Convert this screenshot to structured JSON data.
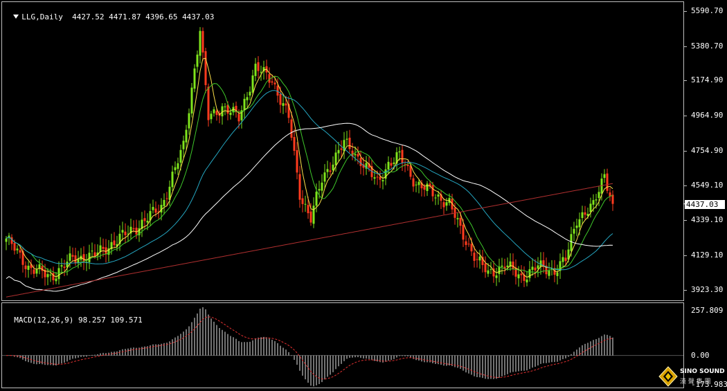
{
  "header": {
    "symbol": "LLG,Daily",
    "open": "4427.52",
    "high": "4471.87",
    "low": "4396.65",
    "close": "4437.03"
  },
  "price_axis": {
    "ticks": [
      "5590.70",
      "5380.70",
      "5174.90",
      "4964.90",
      "4754.90",
      "4549.10",
      "4339.10",
      "4129.10",
      "3923.30"
    ],
    "current_price": "4437.03"
  },
  "macd": {
    "label": "MACD(12,26,9)",
    "main_value": "98.257",
    "signal_value": "109.571",
    "ticks": [
      "257.809",
      "0.00",
      "-173.983"
    ]
  },
  "logo": {
    "name": "SINO SOUND",
    "subtitle": "漢 聲 集 團"
  },
  "colors": {
    "background": "#000000",
    "bull_candle": "#7fe51c",
    "bear_candle": "#ff3b1e",
    "ma_fast": "#ffe24a",
    "ma_mid": "#3fc82a",
    "ma_long": "#25a7c2",
    "ma_slow": "#ffffff",
    "ma_slowest": "#b03030",
    "signal_line": "#e03030",
    "grid_border": "#bfbfbf"
  },
  "chart_data": {
    "type": "candlestick",
    "instrument": "LLG",
    "timeframe": "Daily",
    "price_range": [
      3860,
      5640
    ],
    "macd_range": [
      -173.983,
      257.809
    ],
    "anchors": [
      [
        0,
        4230
      ],
      [
        8,
        4060
      ],
      [
        16,
        4000
      ],
      [
        24,
        4110
      ],
      [
        32,
        4130
      ],
      [
        40,
        4220
      ],
      [
        48,
        4310
      ],
      [
        56,
        4420
      ],
      [
        64,
        4780
      ],
      [
        70,
        5480
      ],
      [
        73,
        4950
      ],
      [
        78,
        5020
      ],
      [
        84,
        4950
      ],
      [
        90,
        5250
      ],
      [
        96,
        5180
      ],
      [
        102,
        4950
      ],
      [
        106,
        4500
      ],
      [
        110,
        4350
      ],
      [
        114,
        4580
      ],
      [
        118,
        4700
      ],
      [
        122,
        4800
      ],
      [
        128,
        4700
      ],
      [
        134,
        4560
      ],
      [
        138,
        4680
      ],
      [
        142,
        4720
      ],
      [
        148,
        4560
      ],
      [
        154,
        4500
      ],
      [
        160,
        4440
      ],
      [
        164,
        4280
      ],
      [
        170,
        4100
      ],
      [
        174,
        4020
      ],
      [
        180,
        4070
      ],
      [
        186,
        4000
      ],
      [
        192,
        4060
      ],
      [
        198,
        4040
      ],
      [
        202,
        4100
      ],
      [
        206,
        4350
      ],
      [
        212,
        4420
      ],
      [
        216,
        4620
      ],
      [
        219,
        4440
      ]
    ]
  }
}
